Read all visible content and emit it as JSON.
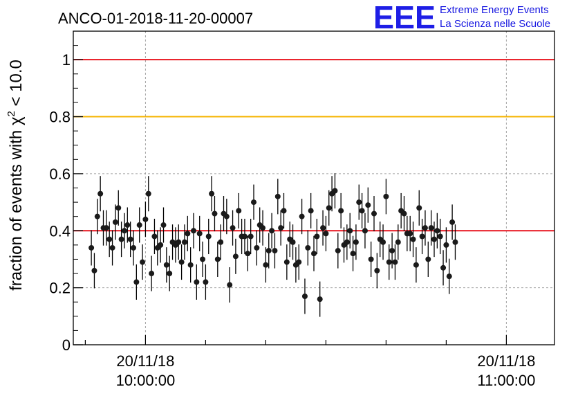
{
  "chart_data": {
    "type": "scatter",
    "title": "ANCO-01-2018-11-20-00007",
    "ylabel": "fraction of events with χ² < 10.0",
    "ylabel_parts": {
      "before": "fraction of events with χ",
      "sup": "2",
      "after": " < 10.0"
    },
    "xlabel": "",
    "ylim": [
      0,
      1.1
    ],
    "xlim_minutes": [
      -72,
      8
    ],
    "y_ticks": [
      0,
      0.2,
      0.4,
      0.6,
      0.8,
      1
    ],
    "y_tick_labels": [
      "0",
      "0.2",
      "0.4",
      "0.6",
      "0.8",
      "1"
    ],
    "x_ticks": [
      {
        "minutes": -60,
        "date": "20/11/18",
        "time": "10:00:00"
      },
      {
        "minutes": 0,
        "date": "20/11/18",
        "time": "11:00:00"
      }
    ],
    "reference_lines": [
      {
        "y": 1.0,
        "color": "#e8141e",
        "name": "upper-limit"
      },
      {
        "y": 0.8,
        "color": "#f6b400",
        "name": "warning-limit"
      },
      {
        "y": 0.4,
        "color": "#e8141e",
        "name": "mean"
      }
    ],
    "point_color": "#1a1a1a",
    "error_half_width": 0.062,
    "x_start_minutes": -69.0,
    "x_step_minutes": 0.5,
    "values": [
      0.34,
      0.26,
      0.45,
      0.53,
      0.41,
      0.41,
      0.37,
      0.34,
      0.43,
      0.48,
      0.37,
      0.4,
      0.42,
      0.37,
      0.34,
      0.22,
      0.42,
      0.29,
      0.44,
      0.53,
      0.25,
      0.38,
      0.34,
      0.35,
      0.42,
      0.28,
      0.25,
      0.36,
      0.35,
      0.36,
      0.29,
      0.36,
      0.39,
      0.28,
      0.4,
      0.22,
      0.39,
      0.3,
      0.22,
      0.38,
      0.53,
      0.46,
      0.3,
      0.36,
      0.46,
      0.45,
      0.21,
      0.41,
      0.31,
      0.47,
      0.38,
      0.38,
      0.32,
      0.38,
      0.5,
      0.34,
      0.42,
      0.41,
      0.28,
      0.33,
      0.4,
      0.33,
      0.52,
      0.41,
      0.47,
      0.29,
      0.37,
      0.36,
      0.28,
      0.29,
      0.45,
      0.17,
      0.34,
      0.47,
      0.32,
      0.38,
      0.16,
      0.41,
      0.39,
      0.48,
      0.53,
      0.54,
      0.33,
      0.47,
      0.35,
      0.36,
      0.4,
      0.32,
      0.36,
      0.5,
      0.47,
      0.4,
      0.49,
      0.3,
      0.46,
      0.26,
      0.37,
      0.36,
      0.52,
      0.29,
      0.33,
      0.29,
      0.36,
      0.47,
      0.46,
      0.39,
      0.39,
      0.37,
      0.28,
      0.48,
      0.38,
      0.41,
      0.3,
      0.41,
      0.37,
      0.4,
      0.38,
      0.27,
      0.35,
      0.24,
      0.43,
      0.36
    ]
  },
  "logo": {
    "letters": "EEE",
    "line1": "Extreme Energy Events",
    "line2": "La Scienza nelle Scuole",
    "color": "#1e1ee6"
  }
}
